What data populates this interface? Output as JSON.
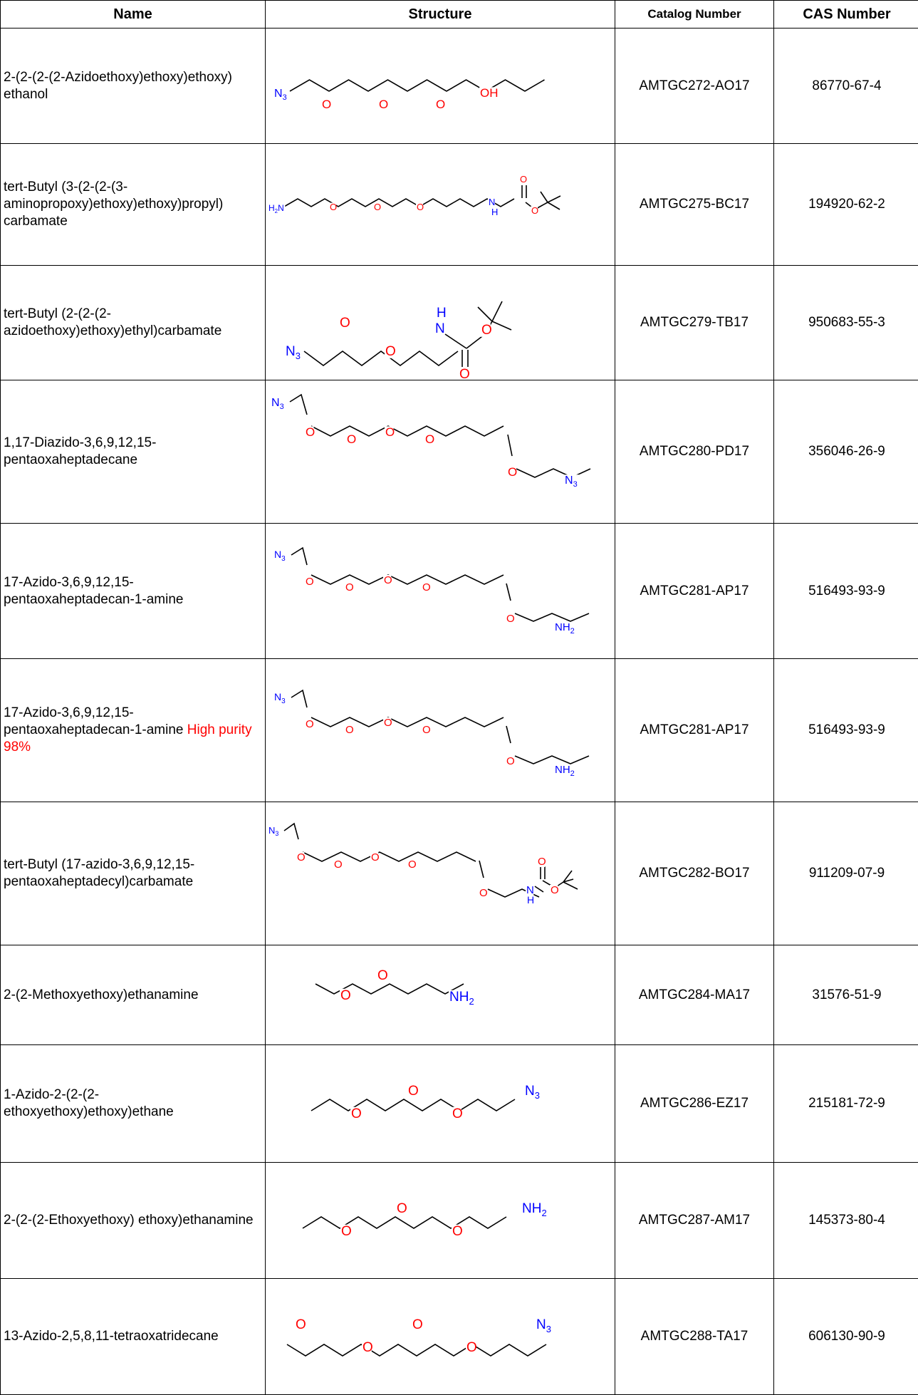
{
  "headers": {
    "name": "Name",
    "structure": "Structure",
    "catalog": "Catalog Number",
    "cas": "CAS Number"
  },
  "rows": [
    {
      "name": "2-(2-(2-(2-Azidoethoxy)ethoxy)ethoxy) ethanol",
      "catalog": "AMTGC272-AO17",
      "cas": "86770-67-4",
      "structure_labels": [
        "N3",
        "O",
        "O",
        "O",
        "OH"
      ]
    },
    {
      "name": "tert-Butyl (3-(2-(2-(3-aminopropoxy)ethoxy)ethoxy)propyl) carbamate",
      "catalog": "AMTGC275-BC17",
      "cas": "194920-62-2",
      "structure_labels": [
        "H2N",
        "O",
        "O",
        "O",
        "N",
        "H",
        "O",
        "O"
      ]
    },
    {
      "name": "tert-Butyl (2-(2-(2-azidoethoxy)ethoxy)ethyl)carbamate",
      "catalog": "AMTGC279-TB17",
      "cas": "950683-55-3",
      "structure_labels": [
        "N3",
        "O",
        "O",
        "H",
        "N",
        "O",
        "O"
      ]
    },
    {
      "name": "1,17-Diazido-3,6,9,12,15-pentaoxaheptadecane",
      "catalog": "AMTGC280-PD17",
      "cas": "356046-26-9",
      "structure_labels": [
        "N3",
        "O",
        "O",
        "O",
        "O",
        "O",
        "N3"
      ]
    },
    {
      "name": "17-Azido-3,6,9,12,15-pentaoxaheptadecan-1-amine",
      "catalog": "AMTGC281-AP17",
      "cas": "516493-93-9",
      "structure_labels": [
        "N3",
        "O",
        "O",
        "O",
        "O",
        "O",
        "NH2"
      ]
    },
    {
      "name": "17-Azido-3,6,9,12,15-pentaoxaheptadecan-1-amine",
      "name_highlight": "High purity 98%",
      "catalog": "AMTGC281-AP17",
      "cas": "516493-93-9",
      "structure_labels": [
        "N3",
        "O",
        "O",
        "O",
        "O",
        "O",
        "NH2"
      ]
    },
    {
      "name": "tert-Butyl (17-azido-3,6,9,12,15-pentaoxaheptadecyl)carbamate",
      "catalog": "AMTGC282-BO17",
      "cas": "911209-07-9",
      "structure_labels": [
        "N3",
        "O",
        "O",
        "O",
        "O",
        "O",
        "N",
        "H",
        "O",
        "O"
      ]
    },
    {
      "name": "2-(2-Methoxyethoxy)ethanamine",
      "catalog": "AMTGC284-MA17",
      "cas": "31576-51-9",
      "structure_labels": [
        "O",
        "O",
        "NH2"
      ]
    },
    {
      "name": "1-Azido-2-(2-(2-ethoxyethoxy)ethoxy)ethane",
      "catalog": "AMTGC286-EZ17",
      "cas": "215181-72-9",
      "structure_labels": [
        "O",
        "O",
        "O",
        "N3"
      ]
    },
    {
      "name": "2-(2-(2-Ethoxyethoxy) ethoxy)ethanamine",
      "catalog": "AMTGC287-AM17",
      "cas": "145373-80-4",
      "structure_labels": [
        "O",
        "O",
        "O",
        "NH2"
      ]
    },
    {
      "name": "13-Azido-2,5,8,11-tetraoxatridecane",
      "catalog": "AMTGC288-TA17",
      "cas": "606130-90-9",
      "structure_labels": [
        "O",
        "O",
        "O",
        "O",
        "N3"
      ]
    }
  ],
  "colors": {
    "oxygen": "#ff0000",
    "nitrogen": "#0000ff",
    "highlight": "#ff0000",
    "border": "#000000"
  }
}
